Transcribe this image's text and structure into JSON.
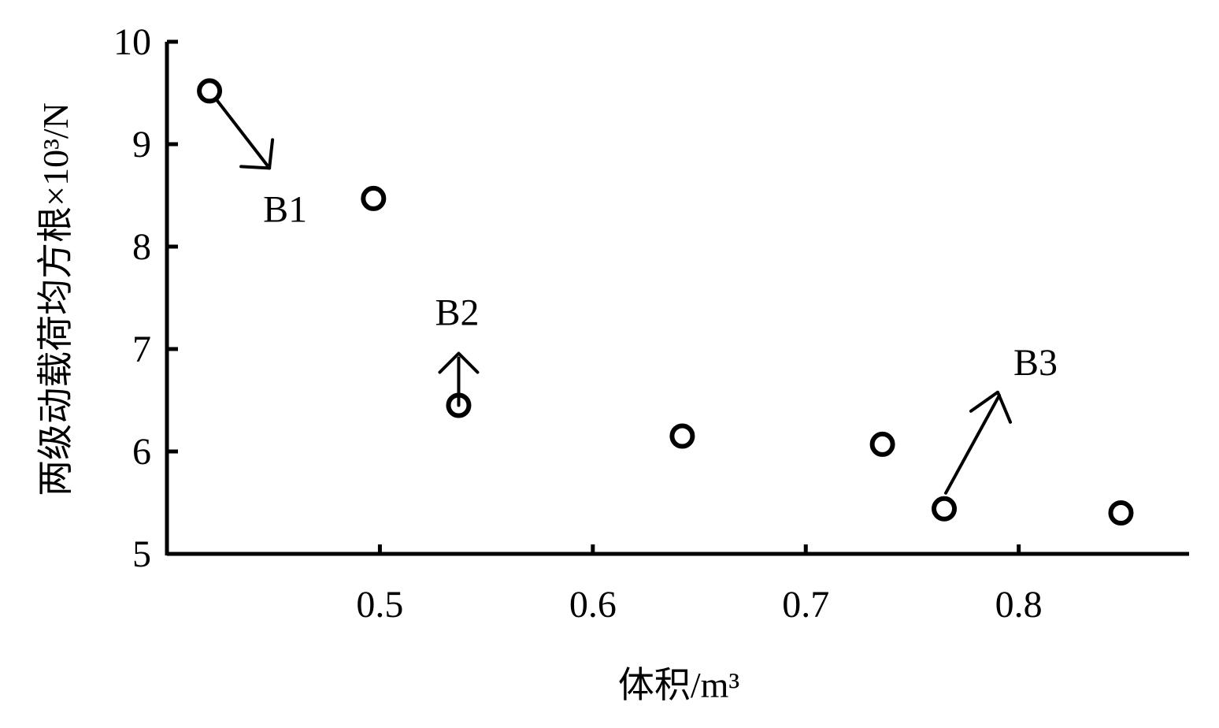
{
  "chart_data": {
    "type": "scatter",
    "title": "",
    "xlabel": "体积/m³",
    "ylabel": "两级动载荷均方根×10³/N",
    "xlim": [
      0.4,
      0.88
    ],
    "ylim": [
      5,
      10
    ],
    "x_ticks": [
      0.5,
      0.6,
      0.7,
      0.8
    ],
    "y_ticks": [
      5,
      6,
      7,
      8,
      9,
      10
    ],
    "x_tick_labels": [
      "0.5",
      "0.6",
      "0.7",
      "0.8"
    ],
    "y_tick_labels": [
      "5",
      "6",
      "7",
      "8",
      "9",
      "10"
    ],
    "grid": false,
    "legend": "none",
    "marker": "open-circle",
    "color": "#000000",
    "points": [
      {
        "x": 0.42,
        "y": 9.52
      },
      {
        "x": 0.497,
        "y": 8.47
      },
      {
        "x": 0.537,
        "y": 6.45
      },
      {
        "x": 0.642,
        "y": 6.15
      },
      {
        "x": 0.736,
        "y": 6.07
      },
      {
        "x": 0.765,
        "y": 5.44
      },
      {
        "x": 0.848,
        "y": 5.4
      }
    ],
    "annotations": [
      {
        "text": "B1",
        "point_index": 0
      },
      {
        "text": "B2",
        "point_index": 2
      },
      {
        "text": "B3",
        "point_index": 5
      }
    ]
  }
}
